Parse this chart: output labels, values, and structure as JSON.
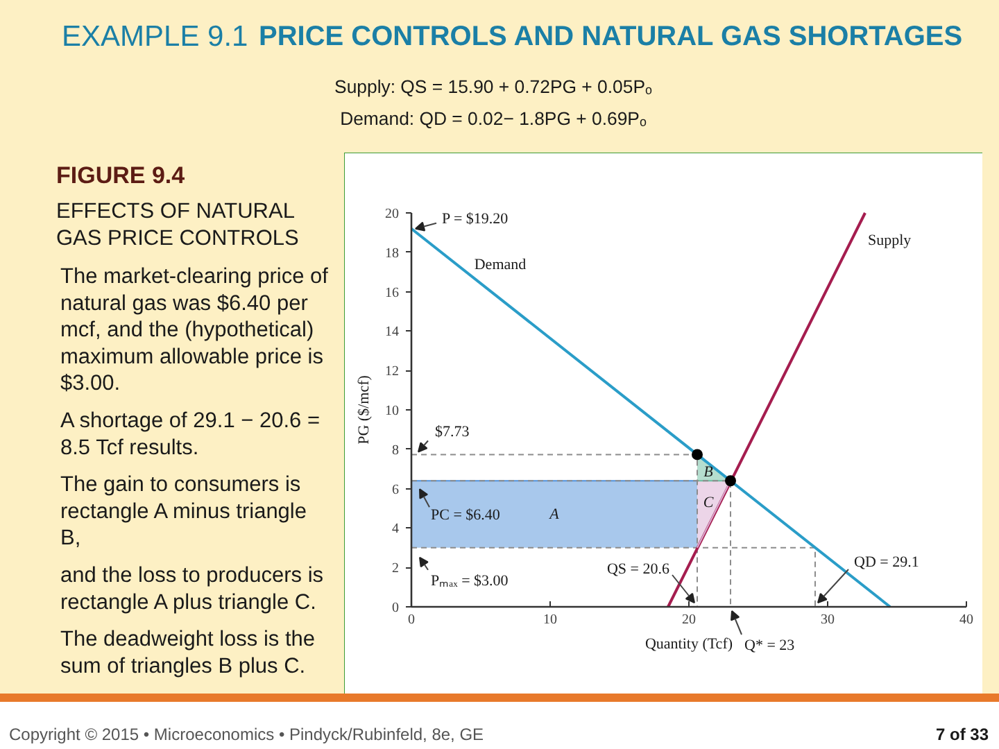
{
  "chart_data": {
    "type": "line",
    "title": "EXAMPLE 9.1",
    "subtitle": "PRICE CONTROLS AND NATURAL GAS SHORTAGES",
    "xlabel": "Quantity (Tcf)",
    "ylabel": "PG ($/mcf)",
    "xlim": [
      0,
      40
    ],
    "ylim": [
      0,
      20
    ],
    "xticks": [
      0,
      10,
      20,
      30,
      40
    ],
    "yticks": [
      0,
      2,
      4,
      6,
      8,
      10,
      12,
      14,
      16,
      18,
      20
    ],
    "series": [
      {
        "name": "A",
        "color": "#5191d9",
        "x": [
          0,
          20.6
        ],
        "values": [
          6.4,
          6.4
        ],
        "lower": [
          3,
          3
        ],
        "upper": [
          6.4,
          6.4
        ]
      },
      {
        "name": "B",
        "color": "#6bbd9f",
        "x": [
          20.6,
          23
        ],
        "values": [
          6.4,
          6.4
        ],
        "lower": [
          6.4,
          6.4
        ],
        "upper": [
          7.73,
          6.4
        ]
      },
      {
        "type": "line",
        "color": "#8c8c8c",
        "line_style": "dashed",
        "x": [
          0,
          20.6,
          20.6
        ],
        "values": [
          7.73,
          7.73,
          0
        ]
      },
      {
        "type": "line",
        "color": "#8c8c8c",
        "line_style": "dashed",
        "x": [
          0,
          23,
          23
        ],
        "values": [
          6.4,
          6.4,
          0
        ]
      },
      {
        "type": "line",
        "color": "#8c8c8c",
        "line_style": "dashed",
        "x": [
          0,
          29.1,
          29.1
        ],
        "values": [
          3,
          3,
          0
        ]
      },
      {
        "name": "Demand",
        "type": "line",
        "color": "#2a9dc8",
        "x": [
          0,
          34.5
        ],
        "values": [
          19.2,
          0
        ]
      },
      {
        "name": "Supply",
        "type": "line",
        "color": "#a51d4f",
        "x": [
          18.5,
          32.7
        ],
        "values": [
          0,
          20
        ]
      },
      {
        "name": "C",
        "color": "#d9abd1",
        "x": [
          20.6,
          23
        ],
        "values": [
          3,
          6.4
        ],
        "lower": [
          3,
          6.4
        ],
        "upper": [
          6.4,
          6.4
        ]
      },
      {
        "type": "scatter",
        "color": "#000000",
        "marker": "circle",
        "x": [
          20.6,
          23
        ],
        "values": [
          7.73,
          6.4
        ]
      }
    ],
    "annotations": [
      "Supply: QS = 15.90 + 0.72PG + 0.05Pₒ",
      "Demand: QD = 0.02− 1.8PG + 0.69Pₒ",
      "FIGURE 9.4",
      "EFFECTS OF NATURAL GAS PRICE CONTROLS",
      "The market-clearing price of natural gas was $6.40 per mcf, and the (hypothetical) maximum allowable price is $3.00.",
      "A shortage of 29.1 − 20.6 = 8.5 Tcf results.",
      "The gain to consumers is rectangle A minus triangle B,",
      "and the loss to producers is rectangle A plus triangle C.",
      "The deadweight loss is the sum of triangles B plus C.",
      "Copyright © 2015 • Microeconomics • Pindyck/Rubinfeld, 8e, GE",
      "7 of 33",
      {
        "text": "P = $19.20",
        "x": 0,
        "y": 19.2
      },
      {
        "text": "$7.73",
        "x": 0,
        "y": 7.73
      },
      {
        "text": "PC = $6.40",
        "x": 0,
        "y": 6.4
      },
      {
        "text": "Pₘₐₓ = $3.00",
        "x": 0,
        "y": 3
      },
      {
        "text": "QS = 20.6",
        "x": 20.6,
        "y": 0
      },
      {
        "text": "QD = 29.1",
        "x": 29.1,
        "y": 0
      },
      {
        "text": "Q* = 23",
        "x": 23,
        "y": 0
      }
    ]
  }
}
